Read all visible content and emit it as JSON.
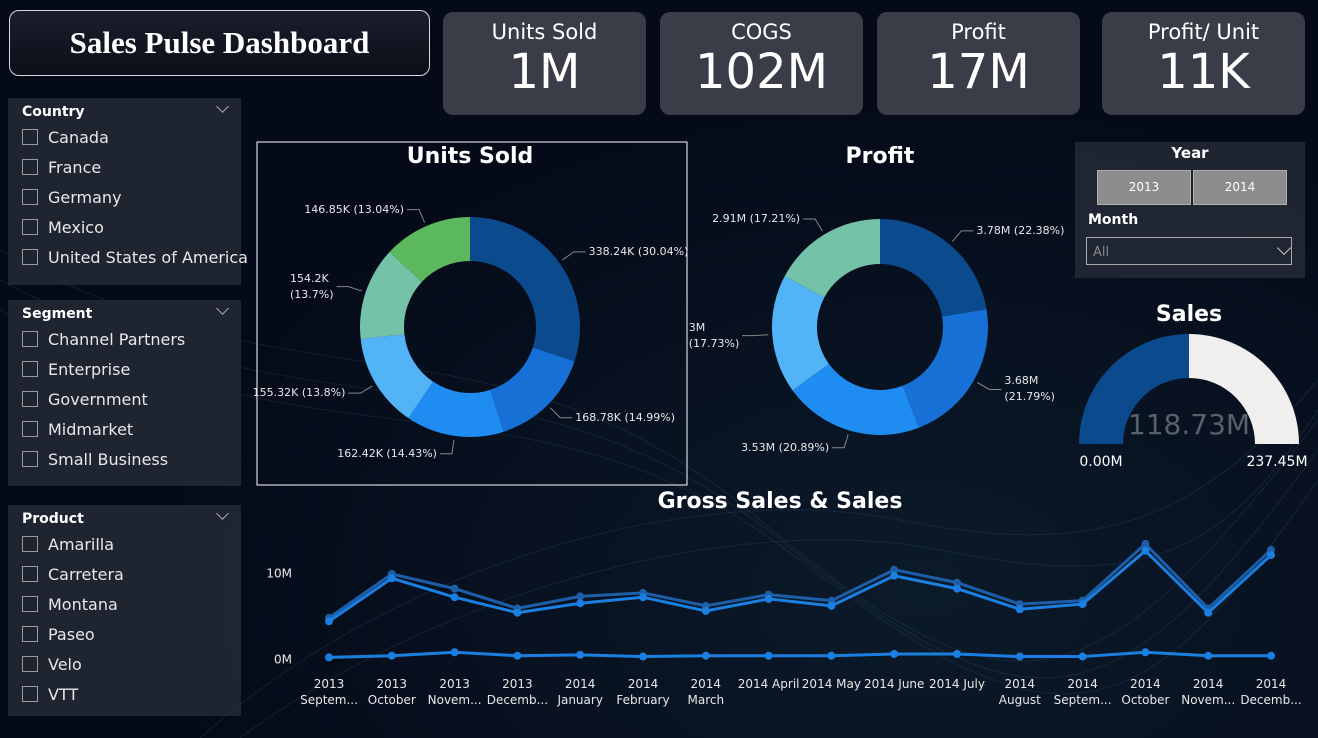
{
  "header": {
    "title": "Sales Pulse Dashboard"
  },
  "kpis": [
    {
      "label": "Units Sold",
      "value": "1M"
    },
    {
      "label": "COGS",
      "value": "102M"
    },
    {
      "label": "Profit",
      "value": "17M"
    },
    {
      "label": "Profit/ Unit",
      "value": "11K"
    }
  ],
  "filters": [
    {
      "title": "Country",
      "options": [
        "Canada",
        "France",
        "Germany",
        "Mexico",
        "United States of America"
      ]
    },
    {
      "title": "Segment",
      "options": [
        "Channel Partners",
        "Enterprise",
        "Government",
        "Midmarket",
        "Small Business"
      ]
    },
    {
      "title": "Product",
      "options": [
        "Amarilla",
        "Carretera",
        "Montana",
        "Paseo",
        "Velo",
        "VTT"
      ]
    }
  ],
  "slicers": {
    "year": {
      "title": "Year",
      "options": [
        "2013",
        "2014"
      ]
    },
    "month": {
      "title": "Month",
      "value": "All"
    }
  },
  "chart_data": [
    {
      "type": "donut",
      "title": "Units Sold",
      "values": [
        338240,
        168780,
        162420,
        155320,
        154200,
        146850
      ],
      "value_labels": [
        "338.24K (30.04%)",
        "168.78K (14.99%)",
        "162.42K (14.43%)",
        "155.32K (13.8%)",
        "154.2K\n(13.7%)",
        "146.85K (13.04%)"
      ],
      "colors": [
        "#0c4a8e",
        "#1670d6",
        "#1e8cf0",
        "#52b4f7",
        "#74c2a8",
        "#5cb85c"
      ]
    },
    {
      "type": "donut",
      "title": "Profit",
      "values": [
        3780000,
        3680000,
        3530000,
        3000000,
        2910000
      ],
      "value_labels": [
        "3.78M (22.38%)",
        "3.68M\n(21.79%)",
        "3.53M (20.89%)",
        "3M\n(17.73%)",
        "2.91M (17.21%)"
      ],
      "colors": [
        "#0c4a8e",
        "#1670d6",
        "#1e8cf0",
        "#52b4f7",
        "#74c2a8"
      ]
    },
    {
      "type": "gauge",
      "title": "Sales",
      "value": 118730000,
      "value_label": "118.73M",
      "ylim": [
        0,
        237450000
      ],
      "yticks": [
        {
          "value": 0,
          "label": "0.00M"
        },
        {
          "value": 237450000,
          "label": "237.45M"
        }
      ],
      "color": "#0c4a8e",
      "track_color": "#f0efed"
    },
    {
      "type": "line",
      "title": "Gross Sales & Sales",
      "categories": [
        "2013 Septem...",
        "2013 October",
        "2013 Novem...",
        "2013 Decemb...",
        "2014 January",
        "2014 February",
        "2014 March",
        "2014 April",
        "2014 May",
        "2014 June",
        "2014 July",
        "2014 August",
        "2014 Septem...",
        "2014 October",
        "2014 Novem...",
        "2014 Decemb..."
      ],
      "series": [
        {
          "color": "#1d5ea8",
          "values": [
            4900000,
            10000000,
            8300000,
            6000000,
            7400000,
            7800000,
            6300000,
            7600000,
            6900000,
            10500000,
            9000000,
            6500000,
            6900000,
            13500000,
            6000000,
            12800000
          ]
        },
        {
          "color": "#1a7fe0",
          "values": [
            4500000,
            9500000,
            7300000,
            5500000,
            6600000,
            7300000,
            5700000,
            7100000,
            6300000,
            9800000,
            8300000,
            5900000,
            6500000,
            12700000,
            5500000,
            12200000
          ]
        },
        {
          "color": "#1a7fe0",
          "values": [
            300000,
            500000,
            900000,
            500000,
            600000,
            400000,
            500000,
            500000,
            500000,
            700000,
            700000,
            400000,
            400000,
            900000,
            500000,
            500000
          ]
        }
      ],
      "ylim": [
        -1000000,
        14000000
      ],
      "yticks": [
        {
          "value": 0,
          "label": "0M"
        },
        {
          "value": 10000000,
          "label": "10M"
        }
      ]
    }
  ]
}
